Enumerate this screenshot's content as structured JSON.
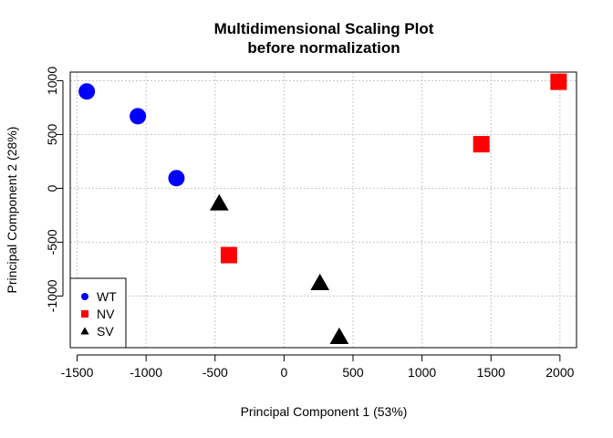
{
  "chart_data": {
    "type": "scatter",
    "title": [
      "Multidimensional Scaling Plot",
      "before normalization"
    ],
    "xlabel": "Principal Component 1 (53%)",
    "ylabel": "Principal Component 2 (28%)",
    "xlim": [
      -1550,
      2120
    ],
    "ylim": [
      -1480,
      1080
    ],
    "xticks": [
      -1500,
      -1000,
      -500,
      0,
      500,
      1000,
      1500,
      2000
    ],
    "yticks": [
      -1000,
      -500,
      0,
      500,
      1000
    ],
    "grid": true,
    "legend_position": "bottom-left",
    "series": [
      {
        "name": "WT",
        "marker": "circle",
        "color": "#0000ff",
        "points": [
          [
            -1430,
            900
          ],
          [
            -1060,
            670
          ],
          [
            -780,
            95
          ]
        ]
      },
      {
        "name": "NV",
        "marker": "square",
        "color": "#ff0000",
        "points": [
          [
            1990,
            990
          ],
          [
            1430,
            410
          ],
          [
            -400,
            -620
          ]
        ]
      },
      {
        "name": "SV",
        "marker": "triangle",
        "color": "#000000",
        "points": [
          [
            -470,
            -140
          ],
          [
            260,
            -880
          ],
          [
            400,
            -1380
          ]
        ]
      }
    ]
  }
}
